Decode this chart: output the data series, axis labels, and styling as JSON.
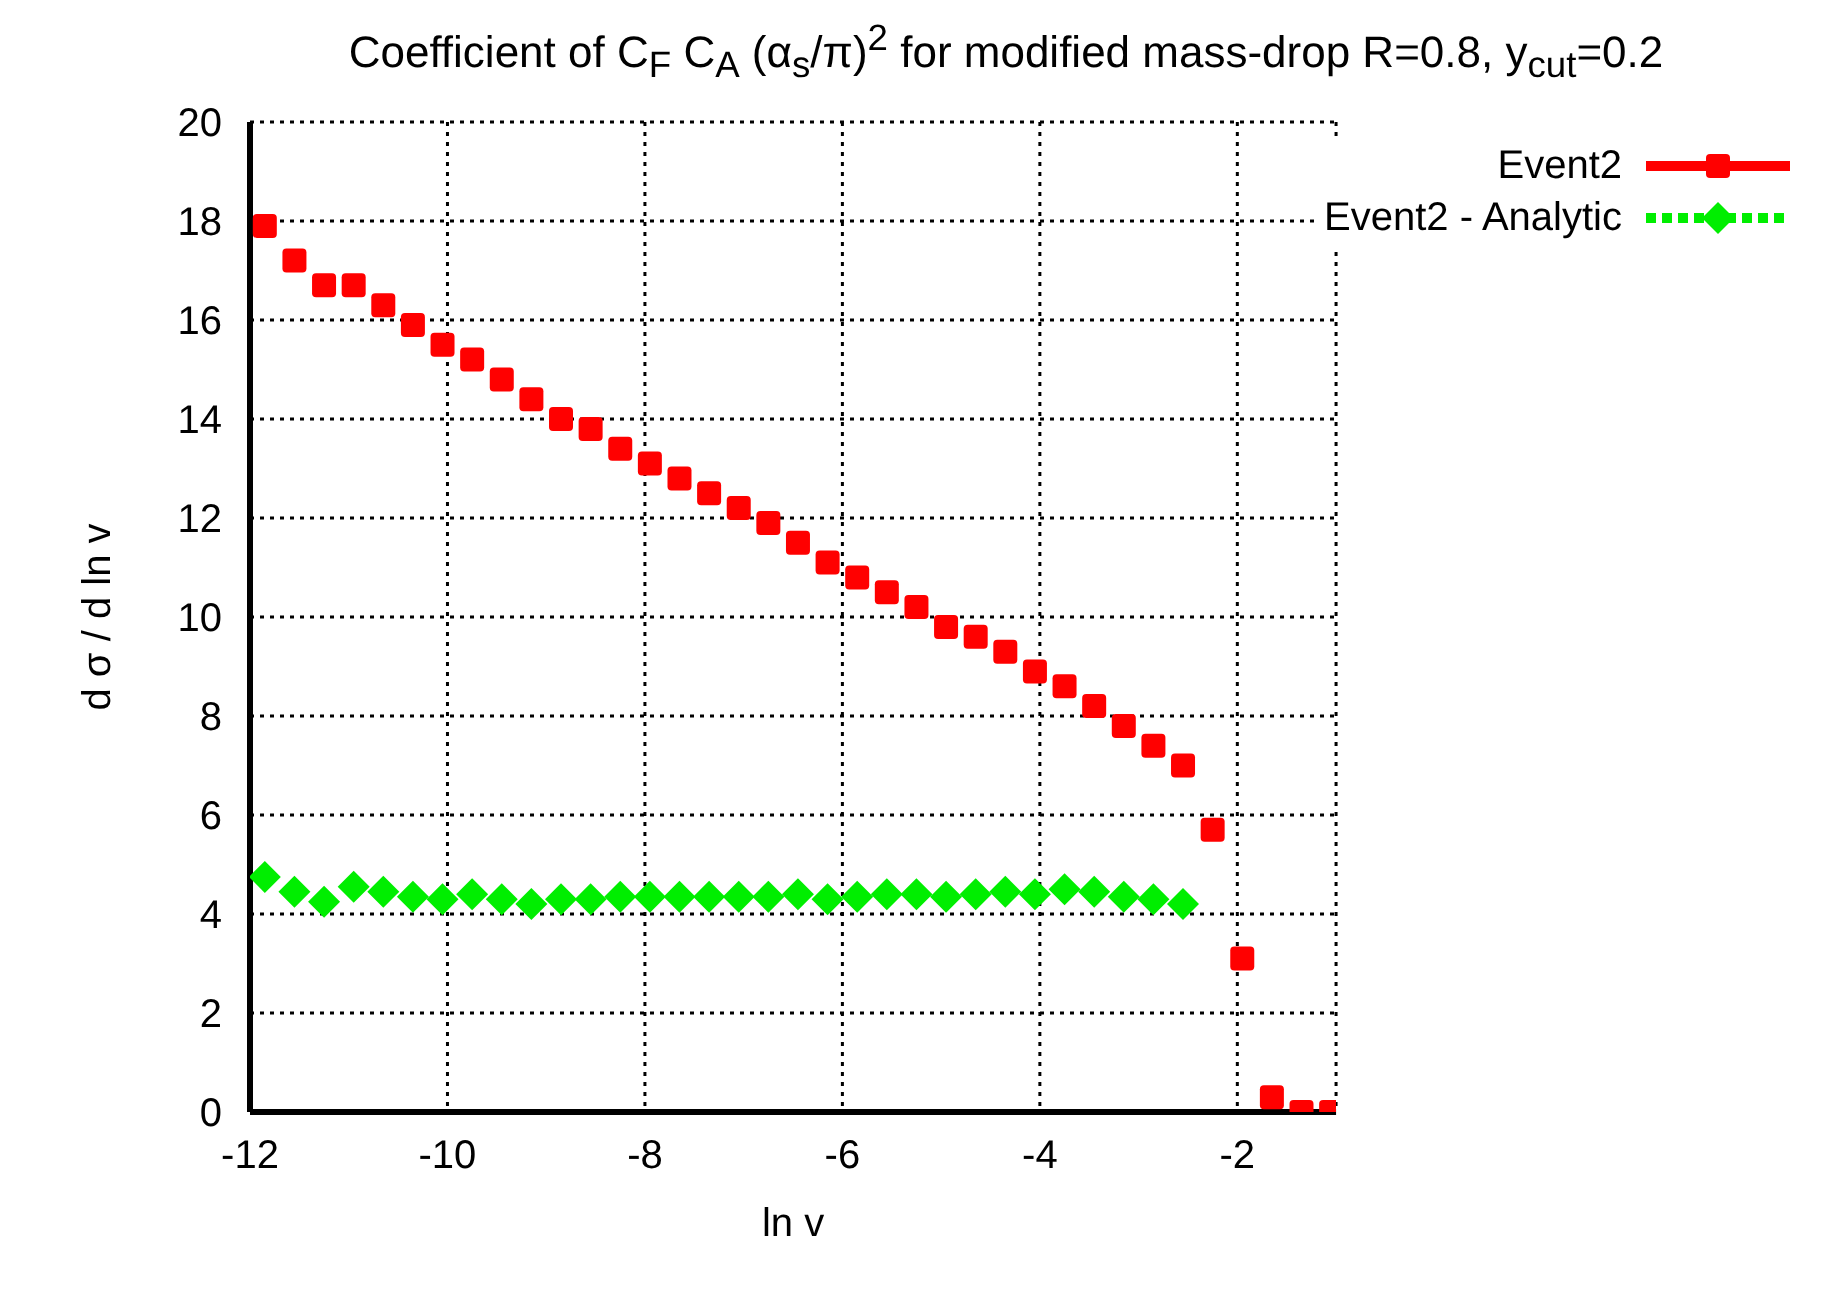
{
  "chart_data": {
    "type": "scatter",
    "title": "Coefficient of C$_{F}$ C$_{A}$ (α$_{s}$/π)$^{2}$ for modified mass-drop R=0.8, y$_{cut}$=0.2",
    "xlabel": "ln v",
    "ylabel": "d σ / d ln v",
    "xlim": [
      -12,
      -1
    ],
    "xticks": [
      -12,
      -10,
      -8,
      -6,
      -4,
      -2
    ],
    "ylim": [
      0,
      20
    ],
    "yticks": [
      0,
      2,
      4,
      6,
      8,
      10,
      12,
      14,
      16,
      18,
      20
    ],
    "grid": true,
    "legend": "top right",
    "series": [
      {
        "name": "Event2",
        "color": "#ff0000",
        "marker": "square",
        "x": [
          -11.85,
          -11.55,
          -11.25,
          -10.95,
          -10.65,
          -10.35,
          -10.05,
          -9.75,
          -9.45,
          -9.15,
          -8.85,
          -8.55,
          -8.25,
          -7.95,
          -7.65,
          -7.35,
          -7.05,
          -6.75,
          -6.45,
          -6.15,
          -5.85,
          -5.55,
          -5.25,
          -4.95,
          -4.65,
          -4.35,
          -4.05,
          -3.75,
          -3.45,
          -3.15,
          -2.85,
          -2.55,
          -2.25,
          -1.95,
          -1.65,
          -1.35,
          -1.05
        ],
        "values": [
          17.9,
          17.2,
          16.7,
          16.7,
          16.3,
          15.9,
          15.5,
          15.2,
          14.8,
          14.4,
          14.0,
          13.8,
          13.4,
          13.1,
          12.8,
          12.5,
          12.2,
          11.9,
          11.5,
          11.1,
          10.8,
          10.5,
          10.2,
          9.8,
          9.6,
          9.3,
          8.9,
          8.6,
          8.2,
          7.8,
          7.4,
          7.0,
          5.7,
          3.1,
          0.3,
          0.0,
          0.0
        ]
      },
      {
        "name": "Event2 - Analytic",
        "color": "#00ee00",
        "marker": "diamond",
        "x": [
          -11.85,
          -11.55,
          -11.25,
          -10.95,
          -10.65,
          -10.35,
          -10.05,
          -9.75,
          -9.45,
          -9.15,
          -8.85,
          -8.55,
          -8.25,
          -7.95,
          -7.65,
          -7.35,
          -7.05,
          -6.75,
          -6.45,
          -6.15,
          -5.85,
          -5.55,
          -5.25,
          -4.95,
          -4.65,
          -4.35,
          -4.05,
          -3.75,
          -3.45,
          -3.15,
          -2.85,
          -2.55
        ],
        "values": [
          4.75,
          4.45,
          4.25,
          4.55,
          4.45,
          4.35,
          4.3,
          4.4,
          4.3,
          4.2,
          4.3,
          4.3,
          4.35,
          4.35,
          4.35,
          4.35,
          4.35,
          4.35,
          4.4,
          4.3,
          4.35,
          4.4,
          4.4,
          4.35,
          4.4,
          4.45,
          4.4,
          4.5,
          4.45,
          4.35,
          4.3,
          4.2
        ]
      }
    ]
  }
}
